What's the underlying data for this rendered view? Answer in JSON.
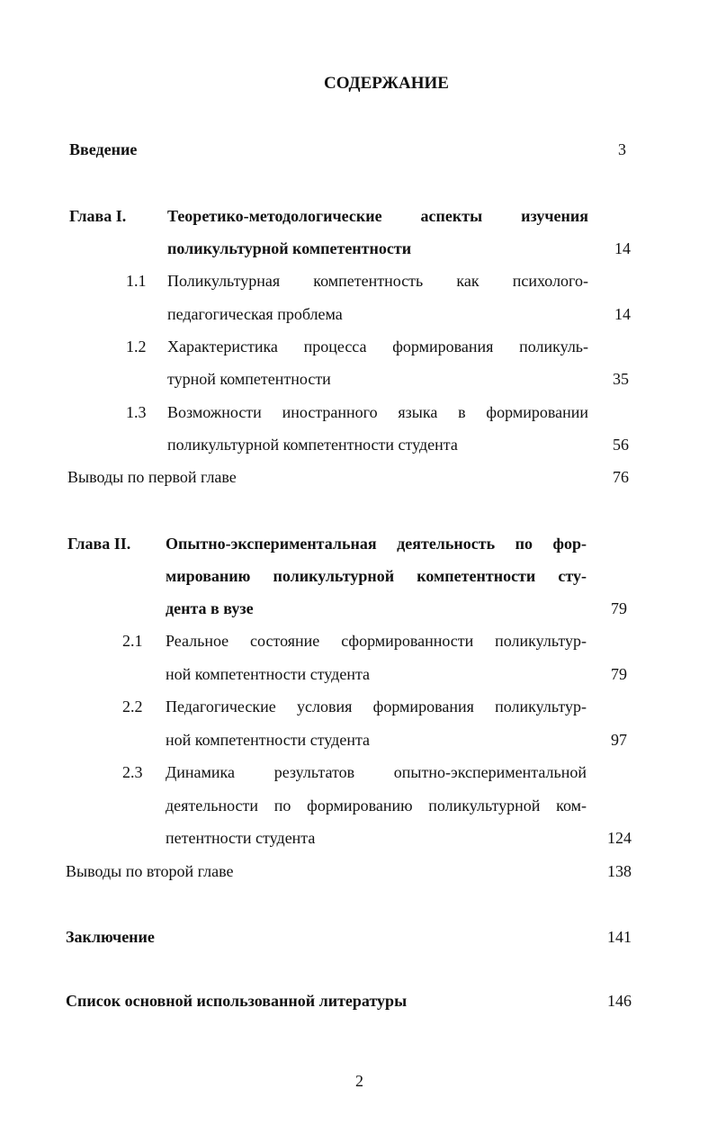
{
  "title": "СОДЕРЖАНИЕ",
  "entries": {
    "intro": {
      "label": "Введение",
      "page": "3"
    },
    "ch1": {
      "num": "Глава I.",
      "line1": "Теоретико-методологические аспекты изучения",
      "line2": "поликультурной компетентности",
      "page": "14"
    },
    "s11": {
      "num": "1.1",
      "line1": "Поликультурная компетентность как психолого-",
      "line2": "педагогическая проблема",
      "page": "14"
    },
    "s12": {
      "num": "1.2",
      "line1": "Характеристика процесса формирования поликуль-",
      "line2": "турной компетентности",
      "page": "35"
    },
    "s13": {
      "num": "1.3",
      "line1": "Возможности иностранного языка в формировании",
      "line2": "поликультурной компетентности студента",
      "page": "56"
    },
    "concl1": {
      "label": "Выводы по первой главе",
      "page": "76"
    },
    "ch2": {
      "num": "Глава II.",
      "line1": "Опытно-экспериментальная деятельность по фор-",
      "line2": "мированию поликультурной компетентности сту-",
      "line3": "дента в вузе",
      "page": "79"
    },
    "s21": {
      "num": "2.1",
      "line1": "Реальное состояние сформированности поликультур-",
      "line2": "ной компетентности студента",
      "page": "79"
    },
    "s22": {
      "num": "2.2",
      "line1": "Педагогические условия формирования поликультур-",
      "line2": "ной компетентности студента",
      "page": "97"
    },
    "s23": {
      "num": "2.3",
      "line1": "Динамика результатов опытно-экспериментальной",
      "line2": "деятельности по формированию поликультурной ком-",
      "line3": "петентности студента",
      "page": "124"
    },
    "concl2": {
      "label": "Выводы по второй главе",
      "page": "138"
    },
    "conclusion": {
      "label": "Заключение",
      "page": "141"
    },
    "refs": {
      "label": "Список основной использованной литературы",
      "page": "146"
    }
  },
  "page_number": "2"
}
